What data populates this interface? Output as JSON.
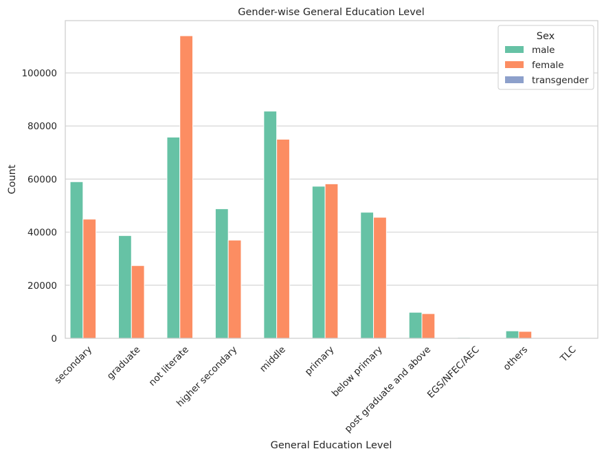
{
  "chart_data": {
    "type": "bar",
    "title": "Gender-wise General Education Level",
    "xlabel": "General Education Level",
    "ylabel": "Count",
    "categories": [
      "secondary",
      "graduate",
      "not literate",
      "higher secondary",
      "middle",
      "primary",
      "below primary",
      "post graduate and above",
      "EGS/NFEC/AEC",
      "others",
      "TLC"
    ],
    "series": [
      {
        "name": "male",
        "color": "#66c2a5",
        "values": [
          59000,
          38700,
          75800,
          48800,
          85600,
          57300,
          47500,
          9800,
          300,
          2800,
          100
        ]
      },
      {
        "name": "female",
        "color": "#fc8d62",
        "values": [
          44900,
          27400,
          114000,
          37000,
          75000,
          58200,
          45600,
          9300,
          200,
          2600,
          100
        ]
      },
      {
        "name": "transgender",
        "color": "#8da0cb",
        "values": [
          0,
          0,
          0,
          0,
          0,
          0,
          0,
          0,
          0,
          0,
          0
        ]
      }
    ],
    "ylim": [
      0,
      119700
    ],
    "yticks": [
      0,
      20000,
      40000,
      60000,
      80000,
      100000
    ],
    "ytick_labels": [
      "0",
      "20000",
      "40000",
      "60000",
      "80000",
      "100000"
    ],
    "grid": "horizontal",
    "legend": {
      "title": "Sex",
      "position": "top-right"
    }
  }
}
